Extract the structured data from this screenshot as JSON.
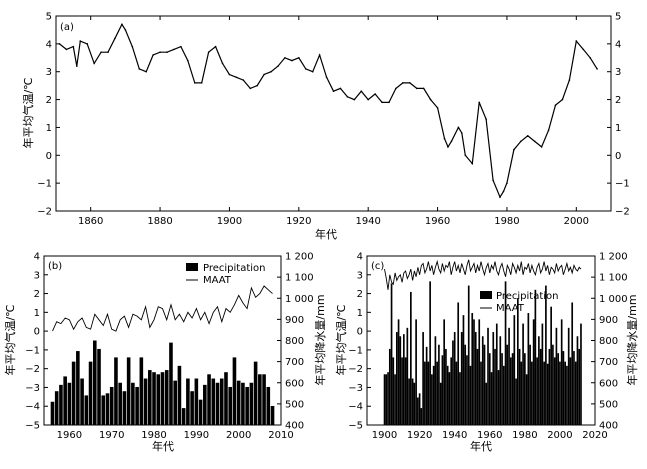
{
  "chart_data": [
    {
      "panel": "(a)",
      "type": "line",
      "xlabel": "年代",
      "ylabel": "年平均气温/℃",
      "xlim": [
        1850,
        2010
      ],
      "ylim": [
        -2,
        5
      ],
      "xticks": [
        1860,
        1880,
        1900,
        1920,
        1940,
        1960,
        1980,
        2000
      ],
      "yticks": [
        -2,
        -1,
        0,
        1,
        2,
        3,
        4,
        5
      ],
      "x": [
        1851,
        1853,
        1855,
        1856,
        1857,
        1859,
        1861,
        1863,
        1865,
        1867,
        1869,
        1870,
        1872,
        1874,
        1876,
        1878,
        1880,
        1882,
        1884,
        1886,
        1888,
        1890,
        1892,
        1894,
        1896,
        1898,
        1900,
        1902,
        1904,
        1906,
        1908,
        1910,
        1912,
        1914,
        1916,
        1918,
        1920,
        1922,
        1924,
        1926,
        1928,
        1930,
        1932,
        1934,
        1936,
        1938,
        1940,
        1942,
        1944,
        1946,
        1948,
        1950,
        1952,
        1954,
        1956,
        1958,
        1960,
        1962,
        1963,
        1964,
        1966,
        1967,
        1968,
        1970,
        1972,
        1974,
        1976,
        1978,
        1979,
        1980,
        1982,
        1984,
        1986,
        1988,
        1990,
        1992,
        1994,
        1996,
        1998,
        2000,
        2002,
        2004,
        2006
      ],
      "y": [
        4.0,
        3.8,
        3.9,
        3.2,
        4.1,
        4.0,
        3.3,
        3.7,
        3.7,
        4.2,
        4.7,
        4.5,
        3.9,
        3.1,
        3.0,
        3.6,
        3.7,
        3.7,
        3.8,
        3.9,
        3.4,
        2.6,
        2.6,
        3.7,
        3.9,
        3.3,
        2.9,
        2.8,
        2.7,
        2.4,
        2.5,
        2.9,
        3.0,
        3.2,
        3.5,
        3.4,
        3.5,
        3.1,
        3.0,
        3.6,
        2.8,
        2.3,
        2.4,
        2.1,
        2.0,
        2.3,
        2.0,
        2.2,
        1.9,
        1.9,
        2.4,
        2.6,
        2.6,
        2.4,
        2.4,
        2.0,
        1.7,
        0.6,
        0.3,
        0.5,
        1.0,
        0.8,
        0.0,
        -0.3,
        1.9,
        1.3,
        -0.9,
        -1.5,
        -1.3,
        -1.0,
        0.2,
        0.5,
        0.7,
        0.5,
        0.3,
        0.9,
        1.8,
        2.0,
        2.7,
        4.1,
        3.8,
        3.5,
        3.1
      ],
      "grid": false
    },
    {
      "panel": "(b)",
      "type": "bar+line",
      "xlabel": "年代",
      "ylabel": "年平均气温/℃",
      "y2label": "年平均降水量/mm",
      "xlim": [
        1954,
        2010
      ],
      "ylim": [
        -5,
        4
      ],
      "y2lim": [
        400,
        1200
      ],
      "xticks": [
        1960,
        1970,
        1980,
        1990,
        2000,
        2010
      ],
      "yticks": [
        -5,
        -4,
        -3,
        -2,
        -1,
        0,
        1,
        2,
        3,
        4
      ],
      "y2ticks": [
        400,
        500,
        600,
        700,
        800,
        900,
        1000,
        1100,
        1200
      ],
      "legend": [
        "Precipitation",
        "MAAT"
      ],
      "legend_position": "top-right",
      "years": [
        1956,
        1957,
        1958,
        1959,
        1960,
        1961,
        1962,
        1963,
        1964,
        1965,
        1966,
        1967,
        1968,
        1969,
        1970,
        1971,
        1972,
        1973,
        1974,
        1975,
        1976,
        1977,
        1978,
        1979,
        1980,
        1981,
        1982,
        1983,
        1984,
        1985,
        1986,
        1987,
        1988,
        1989,
        1990,
        1991,
        1992,
        1993,
        1994,
        1995,
        1996,
        1997,
        1998,
        1999,
        2000,
        2001,
        2002,
        2003,
        2004,
        2005,
        2006,
        2007,
        2008
      ],
      "precipitation": [
        510,
        560,
        590,
        630,
        600,
        700,
        750,
        620,
        540,
        700,
        800,
        760,
        540,
        550,
        580,
        720,
        600,
        560,
        720,
        600,
        580,
        720,
        620,
        660,
        650,
        640,
        650,
        660,
        790,
        610,
        680,
        480,
        620,
        560,
        620,
        520,
        590,
        640,
        620,
        600,
        620,
        650,
        580,
        720,
        610,
        600,
        580,
        600,
        700,
        640,
        640,
        580,
        490
      ],
      "maat": [
        0.0,
        0.5,
        0.4,
        0.7,
        0.6,
        0.1,
        0.5,
        0.7,
        0.2,
        0.1,
        0.9,
        0.6,
        0.3,
        0.9,
        0.1,
        0.0,
        0.6,
        0.8,
        0.2,
        0.9,
        0.8,
        0.6,
        1.3,
        0.2,
        0.6,
        1.3,
        1.2,
        0.6,
        1.4,
        0.6,
        0.9,
        0.5,
        1.0,
        0.7,
        1.2,
        0.6,
        1.0,
        0.4,
        1.0,
        1.3,
        0.5,
        1.2,
        1.0,
        1.4,
        1.9,
        1.5,
        1.2,
        2.3,
        1.8,
        2.0,
        2.4,
        2.2,
        2.0
      ]
    },
    {
      "panel": "(c)",
      "type": "bar+line",
      "xlabel": "年代",
      "ylabel": "年平均气温/℃",
      "y2label": "年平均降水量/mm",
      "xlim": [
        1890,
        2020
      ],
      "ylim": [
        -5,
        4
      ],
      "y2lim": [
        400,
        1200
      ],
      "xticks": [
        1900,
        1920,
        1940,
        1960,
        1980,
        2000,
        2020
      ],
      "yticks": [
        -5,
        -4,
        -3,
        -2,
        -1,
        0,
        1,
        2,
        3,
        4
      ],
      "y2ticks": [
        400,
        500,
        600,
        700,
        800,
        900,
        1000,
        1100,
        1200
      ],
      "legend": [
        "Precipitation",
        "MAAT"
      ],
      "legend_position": "center-right",
      "years_start": 1900,
      "years_end": 2012,
      "precipitation": [
        640,
        640,
        650,
        760,
        1070,
        720,
        640,
        840,
        900,
        820,
        720,
        830,
        720,
        860,
        620,
        1030,
        620,
        600,
        900,
        530,
        550,
        480,
        840,
        700,
        770,
        700,
        1080,
        640,
        680,
        820,
        700,
        780,
        600,
        730,
        900,
        760,
        680,
        650,
        720,
        800,
        840,
        700,
        980,
        650,
        840,
        920,
        780,
        730,
        1060,
        680,
        930,
        900,
        840,
        760,
        900,
        700,
        820,
        780,
        600,
        860,
        740,
        650,
        840,
        760,
        880,
        660,
        820,
        740,
        680,
        1080,
        780,
        860,
        720,
        740,
        920,
        620,
        1000,
        760,
        700,
        880,
        740,
        640,
        930,
        780,
        700,
        900,
        1040,
        720,
        820,
        760,
        880,
        700,
        1060,
        690,
        760,
        960,
        780,
        720,
        860,
        740,
        700,
        900,
        750,
        700,
        680,
        860,
        720,
        980,
        750,
        700,
        820,
        760,
        880
      ],
      "maat": [
        3.3,
        2.8,
        2.2,
        3.0,
        2.6,
        2.5,
        3.1,
        2.7,
        2.9,
        3.0,
        2.6,
        3.1,
        3.2,
        2.8,
        3.0,
        3.3,
        2.7,
        3.2,
        2.9,
        3.4,
        3.0,
        3.5,
        3.6,
        3.1,
        3.3,
        3.7,
        3.2,
        3.5,
        3.0,
        3.4,
        3.7,
        3.3,
        3.1,
        3.6,
        3.2,
        3.5,
        3.4,
        3.7,
        3.0,
        3.4,
        3.7,
        3.2,
        3.5,
        3.1,
        3.6,
        3.3,
        3.0,
        3.5,
        3.8,
        3.2,
        3.4,
        3.6,
        3.1,
        3.5,
        3.2,
        3.7,
        3.3,
        3.0,
        3.4,
        3.6,
        3.1,
        3.5,
        3.3,
        3.7,
        3.2,
        3.0,
        3.4,
        3.6,
        3.2,
        2.9,
        3.5,
        3.3,
        3.0,
        3.6,
        3.4,
        3.1,
        3.5,
        3.2,
        3.7,
        3.0,
        3.4,
        3.3,
        3.6,
        3.1,
        3.5,
        3.2,
        3.0,
        3.4,
        3.6,
        3.1,
        3.3,
        3.7,
        3.2,
        3.5,
        3.0,
        3.4,
        3.3,
        3.1,
        3.6,
        3.2,
        3.4,
        3.5,
        3.0,
        3.3,
        3.6,
        3.2,
        3.4,
        3.1,
        3.5,
        3.3,
        3.2,
        3.4,
        3.3
      ]
    }
  ]
}
